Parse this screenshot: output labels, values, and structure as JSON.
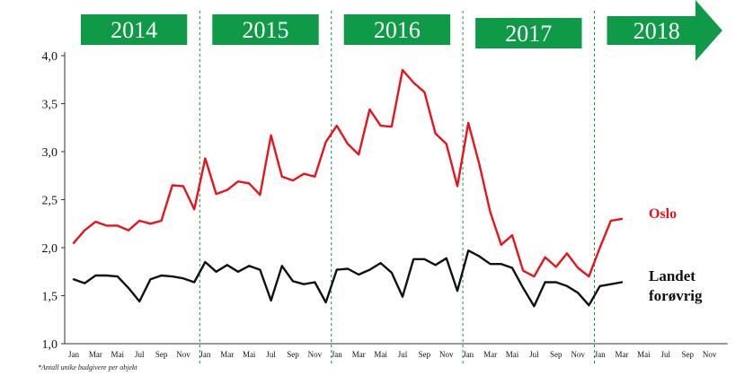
{
  "chart_data": {
    "type": "line",
    "years": [
      "2014",
      "2015",
      "2016",
      "2017",
      "2018"
    ],
    "month_labels": [
      "Jan",
      "Mar",
      "Mai",
      "Jul",
      "Sep",
      "Nov"
    ],
    "y_ticks": [
      "1,0",
      "1,5",
      "2,0",
      "2,5",
      "3,0",
      "3,5",
      "4,0"
    ],
    "ylim": [
      1.0,
      4.0
    ],
    "x_start": "2014-01",
    "x_end": "2018-12",
    "series": [
      {
        "name": "Oslo",
        "color": "#e8141b",
        "values": [
          2.05,
          2.18,
          2.27,
          2.23,
          2.23,
          2.18,
          2.28,
          2.25,
          2.28,
          2.65,
          2.64,
          2.4,
          2.93,
          2.56,
          2.6,
          2.69,
          2.67,
          2.55,
          3.17,
          2.74,
          2.7,
          2.77,
          2.74,
          3.1,
          3.27,
          3.08,
          2.97,
          3.44,
          3.27,
          3.26,
          3.85,
          3.72,
          3.62,
          3.19,
          3.08,
          2.64,
          3.3,
          2.87,
          2.37,
          2.03,
          2.13,
          1.76,
          1.7,
          1.9,
          1.8,
          1.94,
          1.79,
          1.7,
          2.0,
          2.28,
          2.3
        ]
      },
      {
        "name": "Landet forøvrig",
        "color": "#111111",
        "values": [
          1.67,
          1.63,
          1.71,
          1.71,
          1.7,
          1.58,
          1.44,
          1.67,
          1.71,
          1.7,
          1.68,
          1.64,
          1.85,
          1.75,
          1.82,
          1.75,
          1.81,
          1.77,
          1.45,
          1.81,
          1.65,
          1.62,
          1.64,
          1.43,
          1.77,
          1.78,
          1.72,
          1.77,
          1.84,
          1.74,
          1.49,
          1.88,
          1.88,
          1.82,
          1.89,
          1.55,
          1.97,
          1.91,
          1.83,
          1.83,
          1.79,
          1.58,
          1.39,
          1.64,
          1.64,
          1.6,
          1.53,
          1.4,
          1.6,
          1.62,
          1.64
        ]
      }
    ],
    "series_labels": [
      "Oslo",
      "Landet",
      "forøvrig"
    ],
    "footnote": "*Antall unike budgivere per objekt",
    "accent": "#0f9a48"
  }
}
